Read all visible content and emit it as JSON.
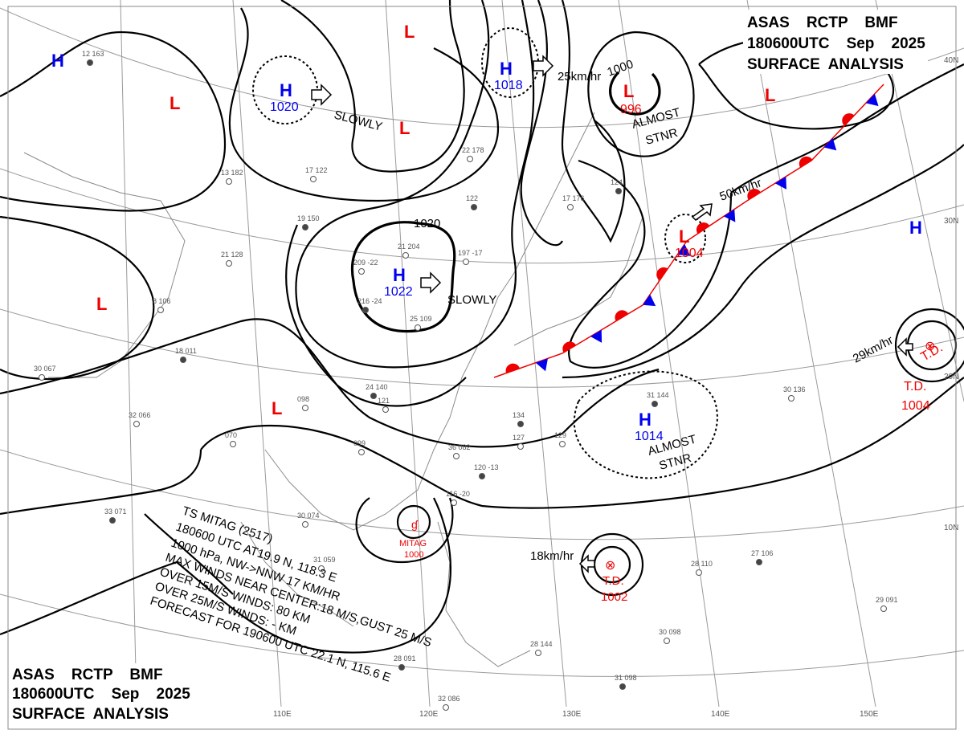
{
  "header_top": {
    "line1": "ASAS    RCTP    BMF",
    "line2": "180600UTC    Sep    2025",
    "line3": "SURFACE  ANALYSIS"
  },
  "header_bottom": {
    "line1": "ASAS    RCTP    BMF",
    "line2": "180600UTC    Sep    2025",
    "line3": "SURFACE  ANALYSIS"
  },
  "colors": {
    "high": "#0000ee",
    "low": "#ee0000",
    "isobar": "#000000",
    "grid": "#9a9a9a"
  },
  "latitudes": [
    "40N",
    "30N",
    "20N",
    "10N"
  ],
  "longitudes": [
    "110E",
    "120E",
    "130E",
    "140E",
    "150E"
  ],
  "isobar_labels": [
    "1000",
    "1020"
  ],
  "centers": [
    {
      "type": "H",
      "value": ""
    },
    {
      "type": "L",
      "value": ""
    },
    {
      "type": "H",
      "value": "1020"
    },
    {
      "type": "L",
      "value": ""
    },
    {
      "type": "L",
      "value": ""
    },
    {
      "type": "H",
      "value": "1018"
    },
    {
      "type": "L",
      "value": "996"
    },
    {
      "type": "L",
      "value": ""
    },
    {
      "type": "H",
      "value": "1022"
    },
    {
      "type": "L",
      "value": ""
    },
    {
      "type": "L",
      "value": ""
    },
    {
      "type": "L",
      "value": "1004"
    },
    {
      "type": "H",
      "value": ""
    },
    {
      "type": "H",
      "value": "1014"
    }
  ],
  "tropical": [
    {
      "label": "T.D.",
      "value": "1004",
      "extra": "T.D. 1004"
    },
    {
      "label": "T.D.",
      "value": "1002"
    },
    {
      "label": "MITAG",
      "value": "1000"
    }
  ],
  "motion_labels": [
    "SLOWLY",
    "SLOWLY",
    "25km/hr",
    "ALMOST",
    "STNR",
    "50km/hr",
    "29km/hr",
    "ALMOST",
    "STNR",
    "18km/hr"
  ],
  "ts_info": [
    "TS  MITAG  (2517)",
    "180600 UTC  AT19.9 N,  118.3 E",
    "1000 hPa, NW->NNW  17 KM/HR",
    "MAX WINDS NEAR CENTER:18 M/S,GUST 25 M/S",
    "OVER 15M/S WINDS: 80 KM",
    "OVER 25M/S WINDS: - KM",
    "FORECAST FOR 190600 UTC 22.1 N, 115.6 E"
  ],
  "stations": [
    "12 163",
    "13 182",
    "17 122",
    "19 150",
    "21 128",
    "8 106",
    "18 011",
    "30 067",
    "32 066",
    "33 071",
    "25 109",
    "209 -22",
    "216 -24",
    "21 204",
    "197 -17",
    "122",
    "22 178",
    "17 176",
    "124",
    "099",
    "36 082",
    "120 -13",
    "116 -20",
    "121",
    "134",
    "127",
    "129",
    "31 144",
    "30 136",
    "28 110",
    "27 106",
    "29 091",
    "30 098",
    "31 098",
    "28 144",
    "32 086",
    "28 091",
    "31 059",
    "30 074",
    "24 140",
    "098",
    "070"
  ]
}
